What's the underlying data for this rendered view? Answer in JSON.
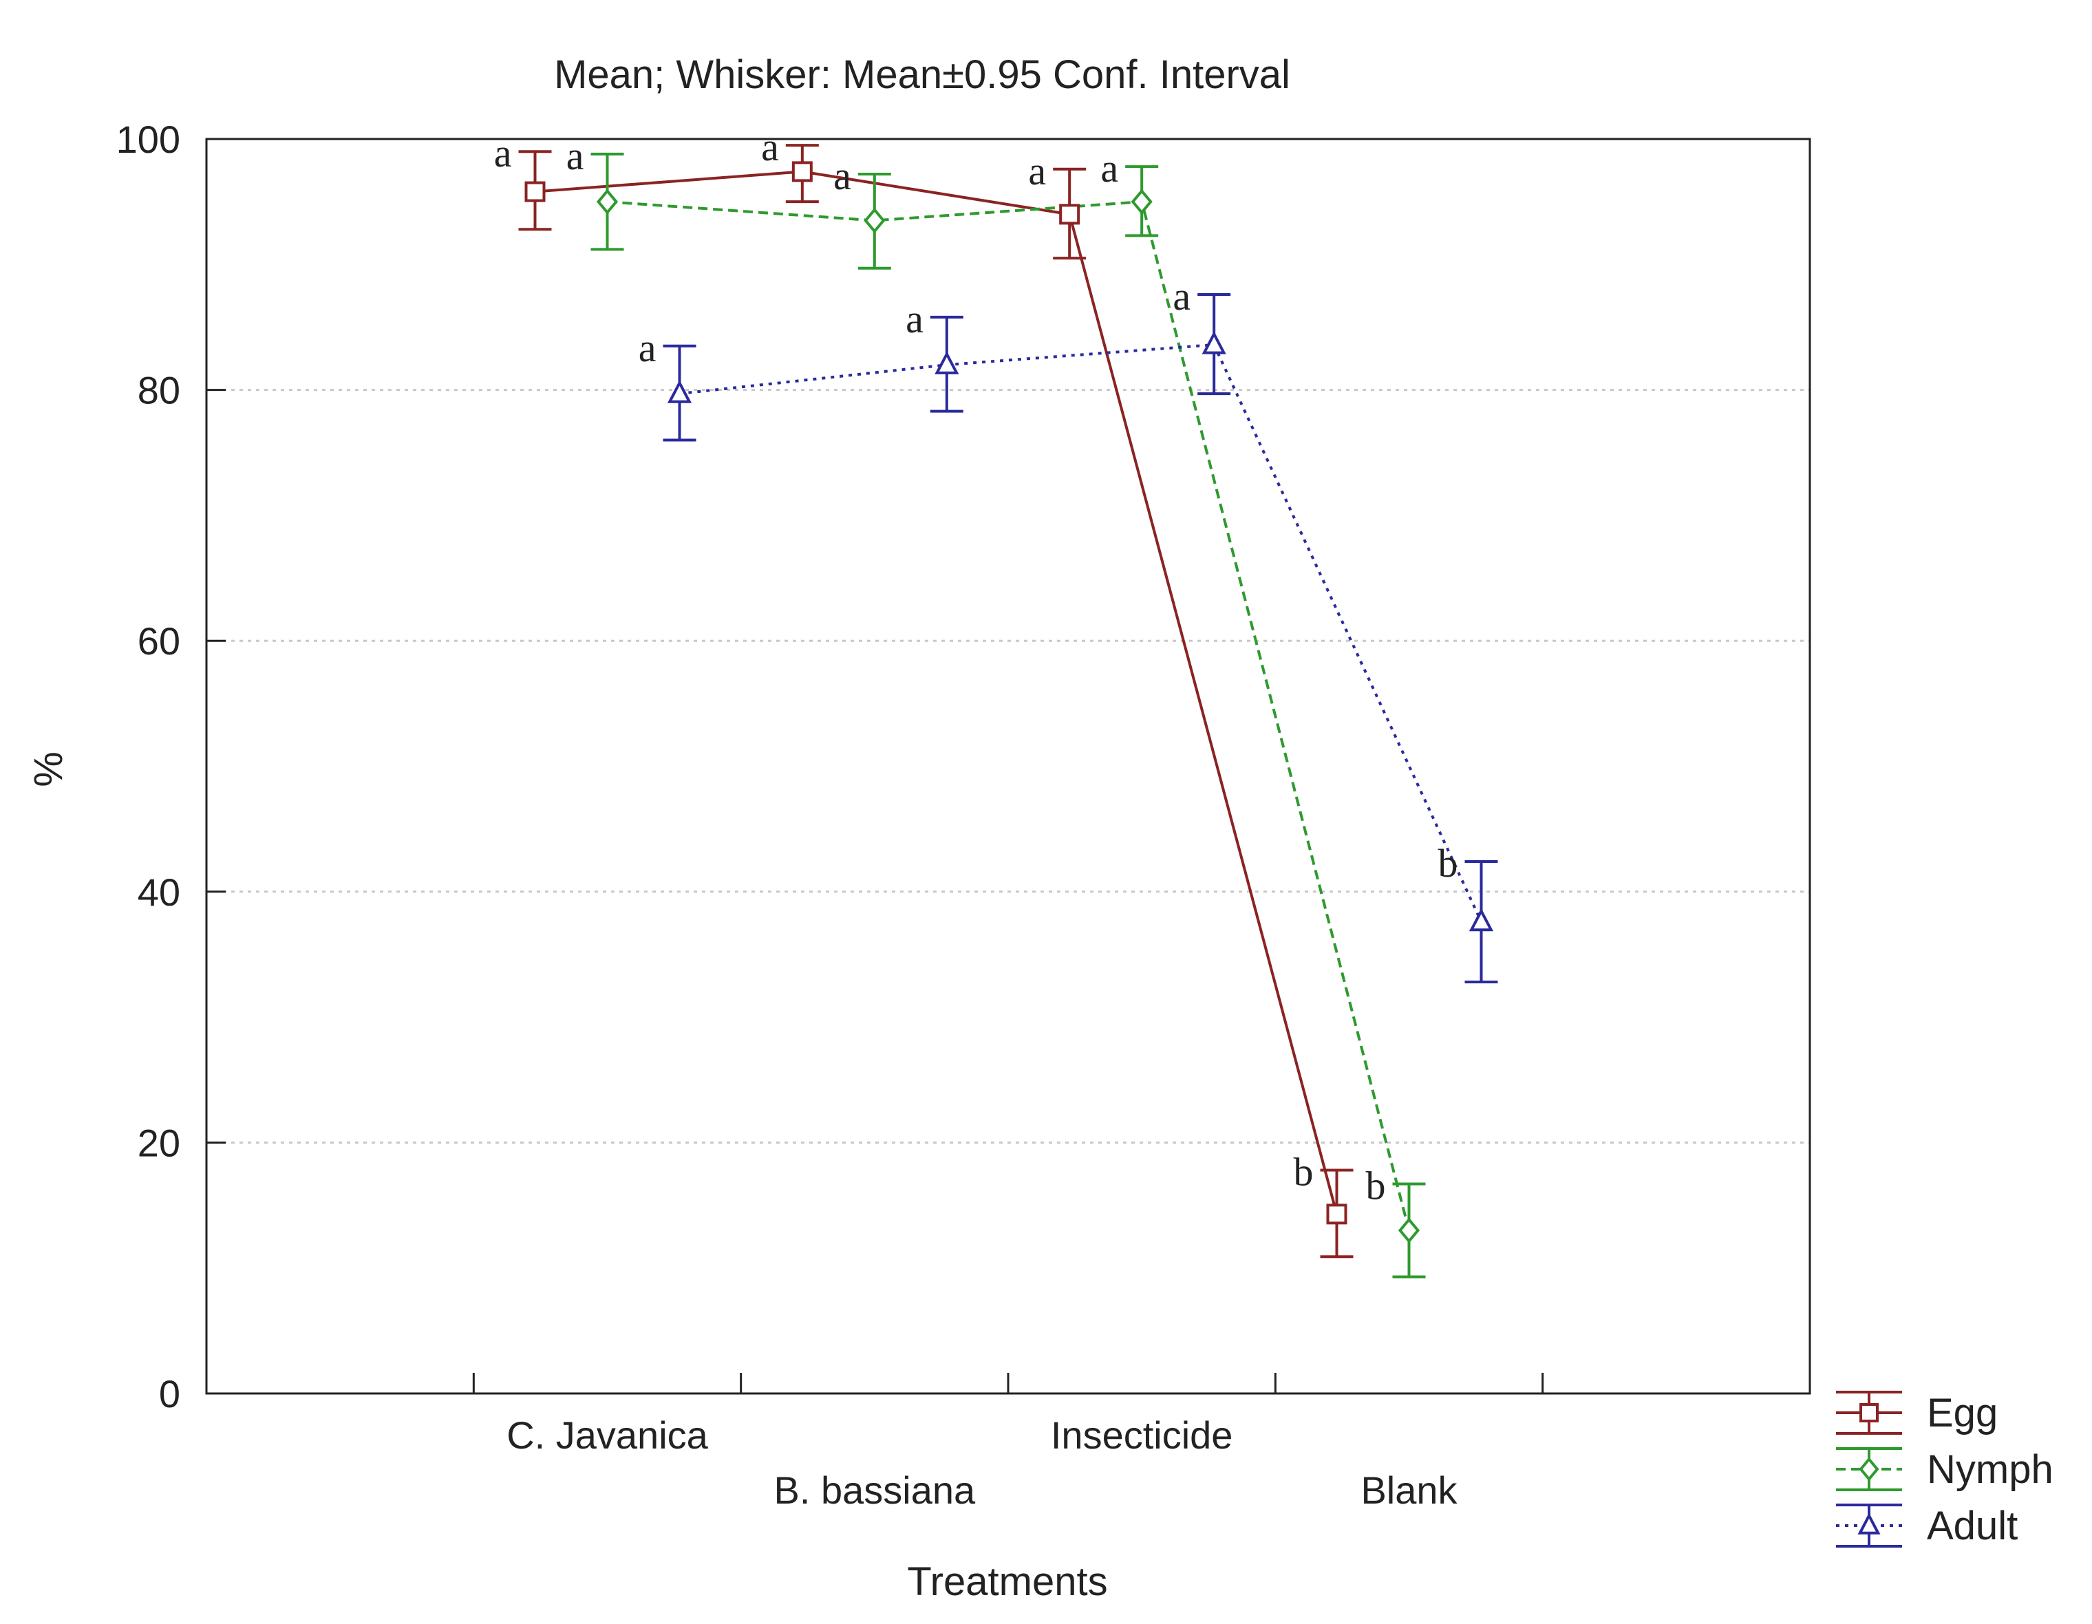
{
  "chart_data": {
    "type": "line",
    "title": "Mean; Whisker: Mean±0.95 Conf. Interval",
    "xlabel": "Treatments",
    "ylabel": "%",
    "ylim": [
      0,
      100
    ],
    "yticks": [
      0,
      20,
      40,
      60,
      80,
      100
    ],
    "grid": "horizontal dotted",
    "legend_position": "bottom-right, outside plot",
    "categories": [
      "C. Javanica",
      "B. bassiana",
      "Insecticide",
      "Blank"
    ],
    "series": [
      {
        "name": "Egg",
        "color": "#8b2323",
        "line_style": "solid",
        "marker": "square",
        "values": [
          95.8,
          97.4,
          94.0,
          14.3
        ],
        "lower": [
          92.8,
          95.0,
          90.5,
          10.9
        ],
        "upper": [
          99.0,
          99.5,
          97.6,
          17.8
        ],
        "letters": [
          "a",
          "a",
          "a",
          "b"
        ]
      },
      {
        "name": "Nymph",
        "color": "#2e9a2e",
        "line_style": "dashed",
        "marker": "diamond",
        "values": [
          95.0,
          93.5,
          95.0,
          13.0
        ],
        "lower": [
          91.2,
          89.7,
          92.3,
          9.3
        ],
        "upper": [
          98.8,
          97.2,
          97.8,
          16.7
        ],
        "letters": [
          "a",
          "a",
          "a",
          "b"
        ]
      },
      {
        "name": "Adult",
        "color": "#2a2a9c",
        "line_style": "dotted",
        "marker": "triangle",
        "values": [
          79.7,
          82.0,
          83.6,
          37.6
        ],
        "lower": [
          76.0,
          78.3,
          79.7,
          32.8
        ],
        "upper": [
          83.5,
          85.8,
          87.6,
          42.4
        ],
        "letters": [
          "a",
          "a",
          "a",
          "b"
        ]
      }
    ]
  }
}
